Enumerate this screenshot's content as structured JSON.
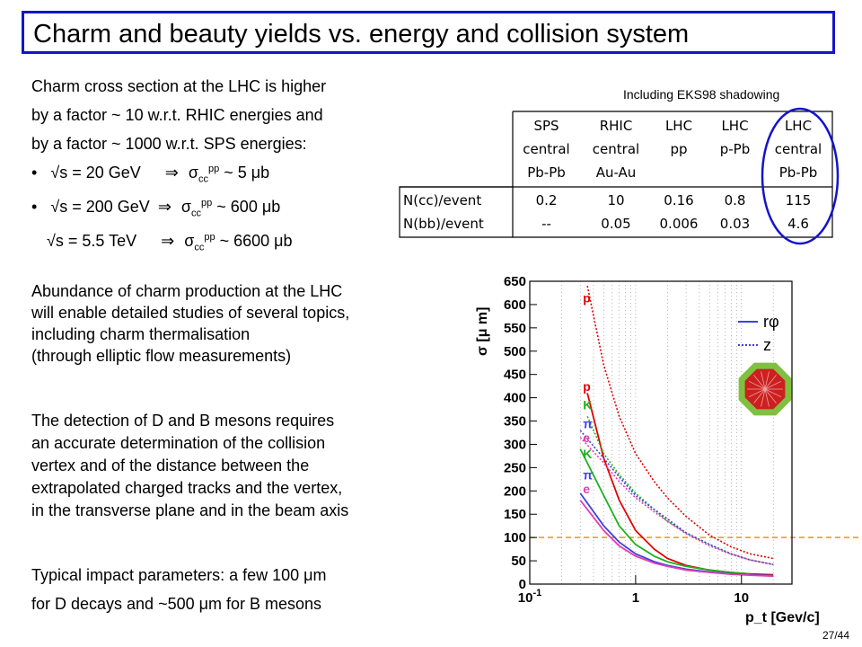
{
  "title": "Charm and beauty yields vs. energy and collision system",
  "intro": [
    "Charm cross section at the LHC is higher",
    "by a factor ~ 10 w.r.t. RHIC energies and",
    "by a factor ~ 1000 w.r.t. SPS energies:"
  ],
  "energies": [
    {
      "bullet": "•",
      "sqrt": "√",
      "s": "s = 20 GeV",
      "arrow": "⇒",
      "sigma": "σ",
      "sub": "cc",
      "sup": "pp",
      "value": " ~ 5 μb"
    },
    {
      "bullet": "•",
      "sqrt": "√",
      "s": "s = 200 GeV",
      "arrow": "⇒",
      "sigma": "σ",
      "sub": "cc",
      "sup": "pp",
      "value": " ~ 600 μb"
    },
    {
      "bullet": "",
      "sqrt": "√",
      "s": "s = 5.5 TeV",
      "arrow": "⇒",
      "sigma": "σ",
      "sub": "cc",
      "sup": "pp",
      "value": " ~ 6600 μb"
    }
  ],
  "para2": [
    "Abundance of charm production at the LHC",
    "will enable detailed studies of several topics,",
    "including charm thermalisation",
    "(through elliptic flow measurements)"
  ],
  "para3": [
    "The detection of D and B mesons requires",
    "an accurate determination of the collision",
    "vertex and of the distance between the",
    "extrapolated charged tracks and the vertex,",
    "in the transverse plane and in the beam axis"
  ],
  "para4": [
    "Typical impact parameters: a few 100 μm",
    "for D decays and ~500 μm for B mesons"
  ],
  "table_note": "Including EKS98 shadowing",
  "table": {
    "headers": [
      [
        "SPS",
        "central",
        "Pb-Pb"
      ],
      [
        "RHIC",
        "central",
        "Au-Au"
      ],
      [
        "LHC",
        "pp",
        ""
      ],
      [
        "LHC",
        "p-Pb",
        ""
      ],
      [
        "LHC",
        "central",
        "Pb-Pb"
      ]
    ],
    "rows": [
      {
        "label": "N(cc)/event",
        "values": [
          "0.2",
          "10",
          "0.16",
          "0.8",
          "115"
        ]
      },
      {
        "label": "N(bb)/event",
        "values": [
          "--",
          "0.05",
          "0.006",
          "0.03",
          "4.6"
        ]
      }
    ]
  },
  "colors": {
    "title_border": "#1414c8",
    "highlight_ellipse": "#1414c8",
    "threshold_line": "#ff9000"
  },
  "chart_data": {
    "type": "line",
    "ylabel": "σ [μ m]",
    "xlabel": "p_t [Gev/c]",
    "xscale": "log",
    "xlim": [
      0.1,
      30
    ],
    "ylim": [
      0,
      650
    ],
    "x_ticks": [
      "10-1",
      "1",
      "10"
    ],
    "y_ticks": [
      0,
      50,
      100,
      150,
      200,
      250,
      300,
      350,
      400,
      450,
      500,
      550,
      600,
      650
    ],
    "grid": "vertical dotted",
    "legend": {
      "position": "top-right",
      "entries": [
        {
          "label": "rφ",
          "style": "solid"
        },
        {
          "label": "z",
          "style": "dotted"
        }
      ]
    },
    "threshold": 100,
    "annotations": [
      {
        "text": "p",
        "color": "#e00000",
        "x": 0.3,
        "y": 605
      },
      {
        "text": "p",
        "color": "#e00000",
        "x": 0.3,
        "y": 415
      },
      {
        "text": "K",
        "color": "#20b020",
        "x": 0.3,
        "y": 375
      },
      {
        "text": "π",
        "color": "#4040e0",
        "x": 0.3,
        "y": 335
      },
      {
        "text": "e",
        "color": "#e040b0",
        "x": 0.3,
        "y": 305
      },
      {
        "text": "K",
        "color": "#20b020",
        "x": 0.3,
        "y": 270
      },
      {
        "text": "π",
        "color": "#4040e0",
        "x": 0.3,
        "y": 225
      },
      {
        "text": "e",
        "color": "#e040b0",
        "x": 0.3,
        "y": 195
      }
    ],
    "series": [
      {
        "color": "#e00000",
        "style": "dotted",
        "x": [
          0.35,
          0.5,
          0.7,
          1,
          1.5,
          2,
          3,
          5,
          8,
          12,
          20
        ],
        "y": [
          640,
          470,
          360,
          280,
          220,
          185,
          145,
          105,
          80,
          65,
          55
        ]
      },
      {
        "color": "#e00000",
        "style": "solid",
        "x": [
          0.35,
          0.5,
          0.7,
          1,
          1.5,
          2,
          3,
          5,
          8,
          12,
          20
        ],
        "y": [
          410,
          270,
          180,
          115,
          75,
          55,
          40,
          30,
          25,
          22,
          20
        ]
      },
      {
        "color": "#20b020",
        "style": "solid",
        "x": [
          0.3,
          0.5,
          0.7,
          1,
          1.5,
          2,
          3,
          5,
          8,
          12
        ],
        "y": [
          290,
          190,
          125,
          85,
          60,
          48,
          38,
          30,
          25,
          22
        ]
      },
      {
        "color": "#20b020",
        "style": "dotted",
        "x": [
          0.35,
          0.5,
          0.7,
          1,
          1.5,
          2,
          3,
          5,
          8,
          12,
          20
        ],
        "y": [
          360,
          280,
          235,
          195,
          160,
          135,
          110,
          85,
          65,
          52,
          42
        ]
      },
      {
        "color": "#4040e0",
        "style": "dotted",
        "x": [
          0.3,
          0.5,
          0.7,
          1,
          1.5,
          2,
          3,
          5,
          8,
          12,
          20
        ],
        "y": [
          330,
          270,
          230,
          190,
          160,
          140,
          110,
          85,
          65,
          52,
          42
        ]
      },
      {
        "color": "#e040b0",
        "style": "dotted",
        "x": [
          0.3,
          0.5,
          0.7,
          1,
          1.5,
          2,
          3,
          5,
          8,
          12,
          20
        ],
        "y": [
          315,
          260,
          220,
          185,
          155,
          135,
          108,
          82,
          64,
          52,
          42
        ]
      },
      {
        "color": "#4040e0",
        "style": "solid",
        "x": [
          0.3,
          0.5,
          0.7,
          1,
          1.5,
          2,
          3,
          5,
          8,
          12,
          20
        ],
        "y": [
          195,
          125,
          90,
          65,
          48,
          40,
          32,
          26,
          22,
          20,
          18
        ]
      },
      {
        "color": "#e040b0",
        "style": "solid",
        "x": [
          0.3,
          0.5,
          0.7,
          1,
          1.5,
          2,
          3,
          5,
          8,
          12,
          20
        ],
        "y": [
          180,
          115,
          82,
          60,
          45,
          38,
          30,
          25,
          21,
          19,
          17
        ]
      }
    ]
  },
  "slide_number": "27/44"
}
